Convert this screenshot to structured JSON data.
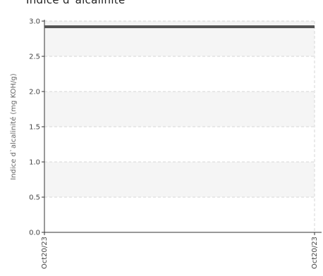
{
  "chart_data": {
    "type": "line",
    "title": "Indice d`alcalinité",
    "ylabel": "Indice d`alcalinité (mg KOH/g)",
    "xlabel": "",
    "x": [
      "Oct20/23",
      "Oct20/23"
    ],
    "series": [
      {
        "values": [
          2.92,
          2.92
        ],
        "color": "#555555"
      }
    ],
    "ylim": [
      0,
      3.0
    ],
    "yticks": [
      "0.0",
      "0.5",
      "1.0",
      "1.5",
      "2.0",
      "2.5",
      "3.0"
    ],
    "grid": true
  }
}
